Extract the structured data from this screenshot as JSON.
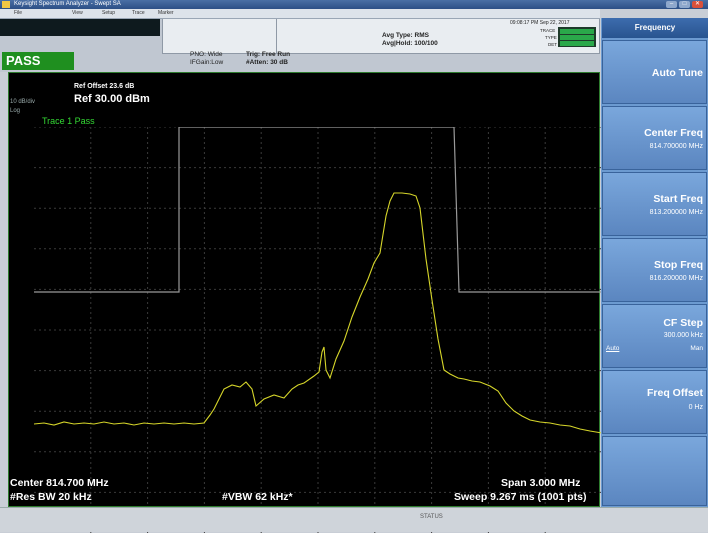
{
  "window": {
    "title": "Keysight Spectrum Analyzer - Swept SA"
  },
  "menu": [
    "File",
    "View",
    "Setup",
    "Trace",
    "Marker"
  ],
  "header": {
    "pass_label": "PASS",
    "pno": "PNO: Wide",
    "if_gain": "IFGain:Low",
    "trig": "Trig: Free Run",
    "atten": "#Atten: 30 dB",
    "avg_type": "Avg Type: RMS",
    "avg_hold": "Avg|Hold: 100/100",
    "datetime": "09:08:17 PM Sep 22, 2017",
    "trace_lbl": "TRACE",
    "type_lbl": "TYPE",
    "det_lbl": "DET"
  },
  "display": {
    "ref_offset": "Ref Offset 23.6 dB",
    "ref_level": "Ref 30.00 dBm",
    "scale": "10 dB/div",
    "log": "Log",
    "trace_status": "Trace 1 Pass",
    "center": "Center 814.700 MHz",
    "res_bw": "#Res BW 20 kHz",
    "vbw": "#VBW 62 kHz*",
    "span": "Span 3.000 MHz",
    "sweep": "Sweep  9.267 ms (1001 pts)"
  },
  "softkeys": {
    "menu_title": "Frequency",
    "auto_tune": "Auto Tune",
    "center_freq": "Center Freq",
    "center_freq_val": "814.700000 MHz",
    "start_freq": "Start Freq",
    "start_freq_val": "813.200000 MHz",
    "stop_freq": "Stop Freq",
    "stop_freq_val": "816.200000 MHz",
    "cf_step": "CF Step",
    "cf_step_val": "300.000 kHz",
    "cf_auto": "Auto",
    "cf_man": "Man",
    "freq_offset": "Freq Offset",
    "freq_offset_val": "0 Hz"
  },
  "status": {
    "message": "STATUS"
  },
  "colors": {
    "trace": "#d6d62a",
    "limit": "#9a9a9a",
    "pass": "#1f8f1f",
    "softkey": "#6c9ad0"
  }
}
